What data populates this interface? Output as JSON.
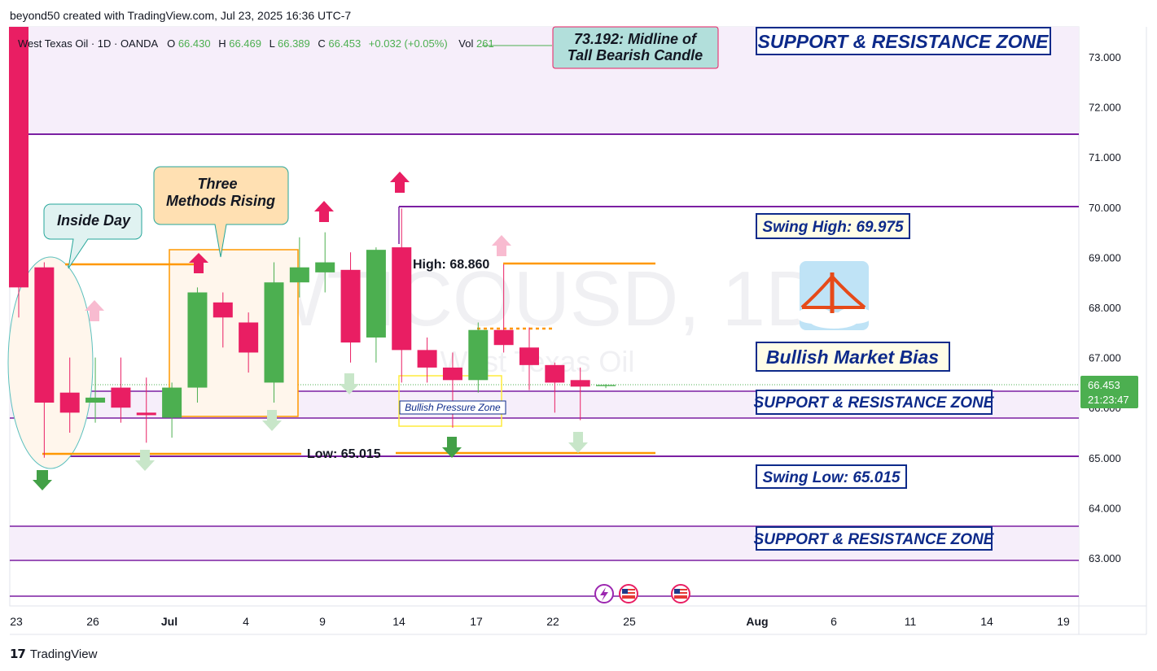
{
  "header": {
    "text": "beyond50 created with TradingView.com, Jul 23, 2025 16:36 UTC-7"
  },
  "symbol_bar": {
    "name": "West Texas Oil · 1D · OANDA",
    "o_label": "O",
    "o_val": "66.430",
    "h_label": "H",
    "h_val": "66.469",
    "l_label": "L",
    "l_val": "66.389",
    "c_label": "C",
    "c_val": "66.453",
    "change": "+0.032 (+0.05%)",
    "vol_label": "Vol",
    "vol_val": "261"
  },
  "watermark": {
    "symbol": "WTICOUSD, 1D",
    "name": "West Texas Oil"
  },
  "price_label": {
    "price": "66.453",
    "countdown": "21:23:47"
  },
  "footer": {
    "brand": "TradingView"
  },
  "colors": {
    "up": "#4caf50",
    "down": "#e91e63",
    "zone_line": "#7b1fa2",
    "zone_fill": "#f3e5f5",
    "orange": "#ff9800",
    "label_border": "#0d2a8a"
  },
  "annotations": {
    "midline": "73.192: Midline of Tall Bearish Candle",
    "sr_top": "SUPPORT & RESISTANCE ZONE",
    "sr_mid": "SUPPORT & RESISTANCE ZONE",
    "sr_low": "SUPPORT & RESISTANCE ZONE",
    "swing_high": "Swing High: 69.975",
    "swing_low": "Swing Low: 65.015",
    "bias": "Bullish Market Bias",
    "inside_day": "Inside Day",
    "three_methods_1": "Three",
    "three_methods_2": "Methods Rising",
    "high_label": "High: 68.860",
    "low_label": "Low: 65.015",
    "bullish_pressure": "Bullish Pressure Zone"
  },
  "chart_data": {
    "type": "candlestick",
    "title": "West Texas Oil · 1D · OANDA",
    "ylim": [
      62.1,
      73.6
    ],
    "y_ticks": [
      63.0,
      64.0,
      65.0,
      66.0,
      67.0,
      68.0,
      69.0,
      70.0,
      71.0,
      72.0,
      73.0
    ],
    "x_ticks": [
      "23",
      "26",
      "Jul",
      "4",
      "9",
      "14",
      "17",
      "22",
      "25",
      "Aug",
      "6",
      "11",
      "14",
      "19"
    ],
    "candles": [
      {
        "o": 74.5,
        "h": 74.8,
        "l": 67.8,
        "c": 68.4
      },
      {
        "o": 68.8,
        "h": 68.9,
        "l": 65.0,
        "c": 66.1
      },
      {
        "o": 66.3,
        "h": 67.0,
        "l": 65.5,
        "c": 65.9
      },
      {
        "o": 66.1,
        "h": 67.0,
        "l": 65.7,
        "c": 66.2
      },
      {
        "o": 66.4,
        "h": 67.0,
        "l": 65.7,
        "c": 66.0
      },
      {
        "o": 65.9,
        "h": 66.6,
        "l": 65.3,
        "c": 65.85
      },
      {
        "o": 65.8,
        "h": 66.5,
        "l": 65.4,
        "c": 66.4
      },
      {
        "o": 66.4,
        "h": 68.4,
        "l": 66.1,
        "c": 68.3
      },
      {
        "o": 68.1,
        "h": 68.3,
        "l": 67.2,
        "c": 67.8
      },
      {
        "o": 67.7,
        "h": 67.9,
        "l": 66.7,
        "c": 67.1
      },
      {
        "o": 66.5,
        "h": 68.9,
        "l": 66.1,
        "c": 68.5
      },
      {
        "o": 68.5,
        "h": 69.4,
        "l": 68.2,
        "c": 68.8
      },
      {
        "o": 68.7,
        "h": 69.5,
        "l": 68.3,
        "c": 68.9
      },
      {
        "o": 68.75,
        "h": 69.1,
        "l": 66.9,
        "c": 67.3
      },
      {
        "o": 67.4,
        "h": 69.2,
        "l": 66.9,
        "c": 69.15
      },
      {
        "o": 69.2,
        "h": 69.975,
        "l": 66.5,
        "c": 67.15
      },
      {
        "o": 67.15,
        "h": 67.4,
        "l": 66.5,
        "c": 66.8
      },
      {
        "o": 66.8,
        "h": 67.1,
        "l": 65.6,
        "c": 66.55
      },
      {
        "o": 66.55,
        "h": 67.7,
        "l": 66.3,
        "c": 67.55
      },
      {
        "o": 67.55,
        "h": 68.86,
        "l": 67.1,
        "c": 67.25
      },
      {
        "o": 67.2,
        "h": 67.6,
        "l": 66.35,
        "c": 66.85
      },
      {
        "o": 66.85,
        "h": 66.9,
        "l": 65.9,
        "c": 66.5
      },
      {
        "o": 66.55,
        "h": 66.8,
        "l": 65.75,
        "c": 66.42
      },
      {
        "o": 66.43,
        "h": 66.47,
        "l": 66.39,
        "c": 66.453
      }
    ]
  }
}
